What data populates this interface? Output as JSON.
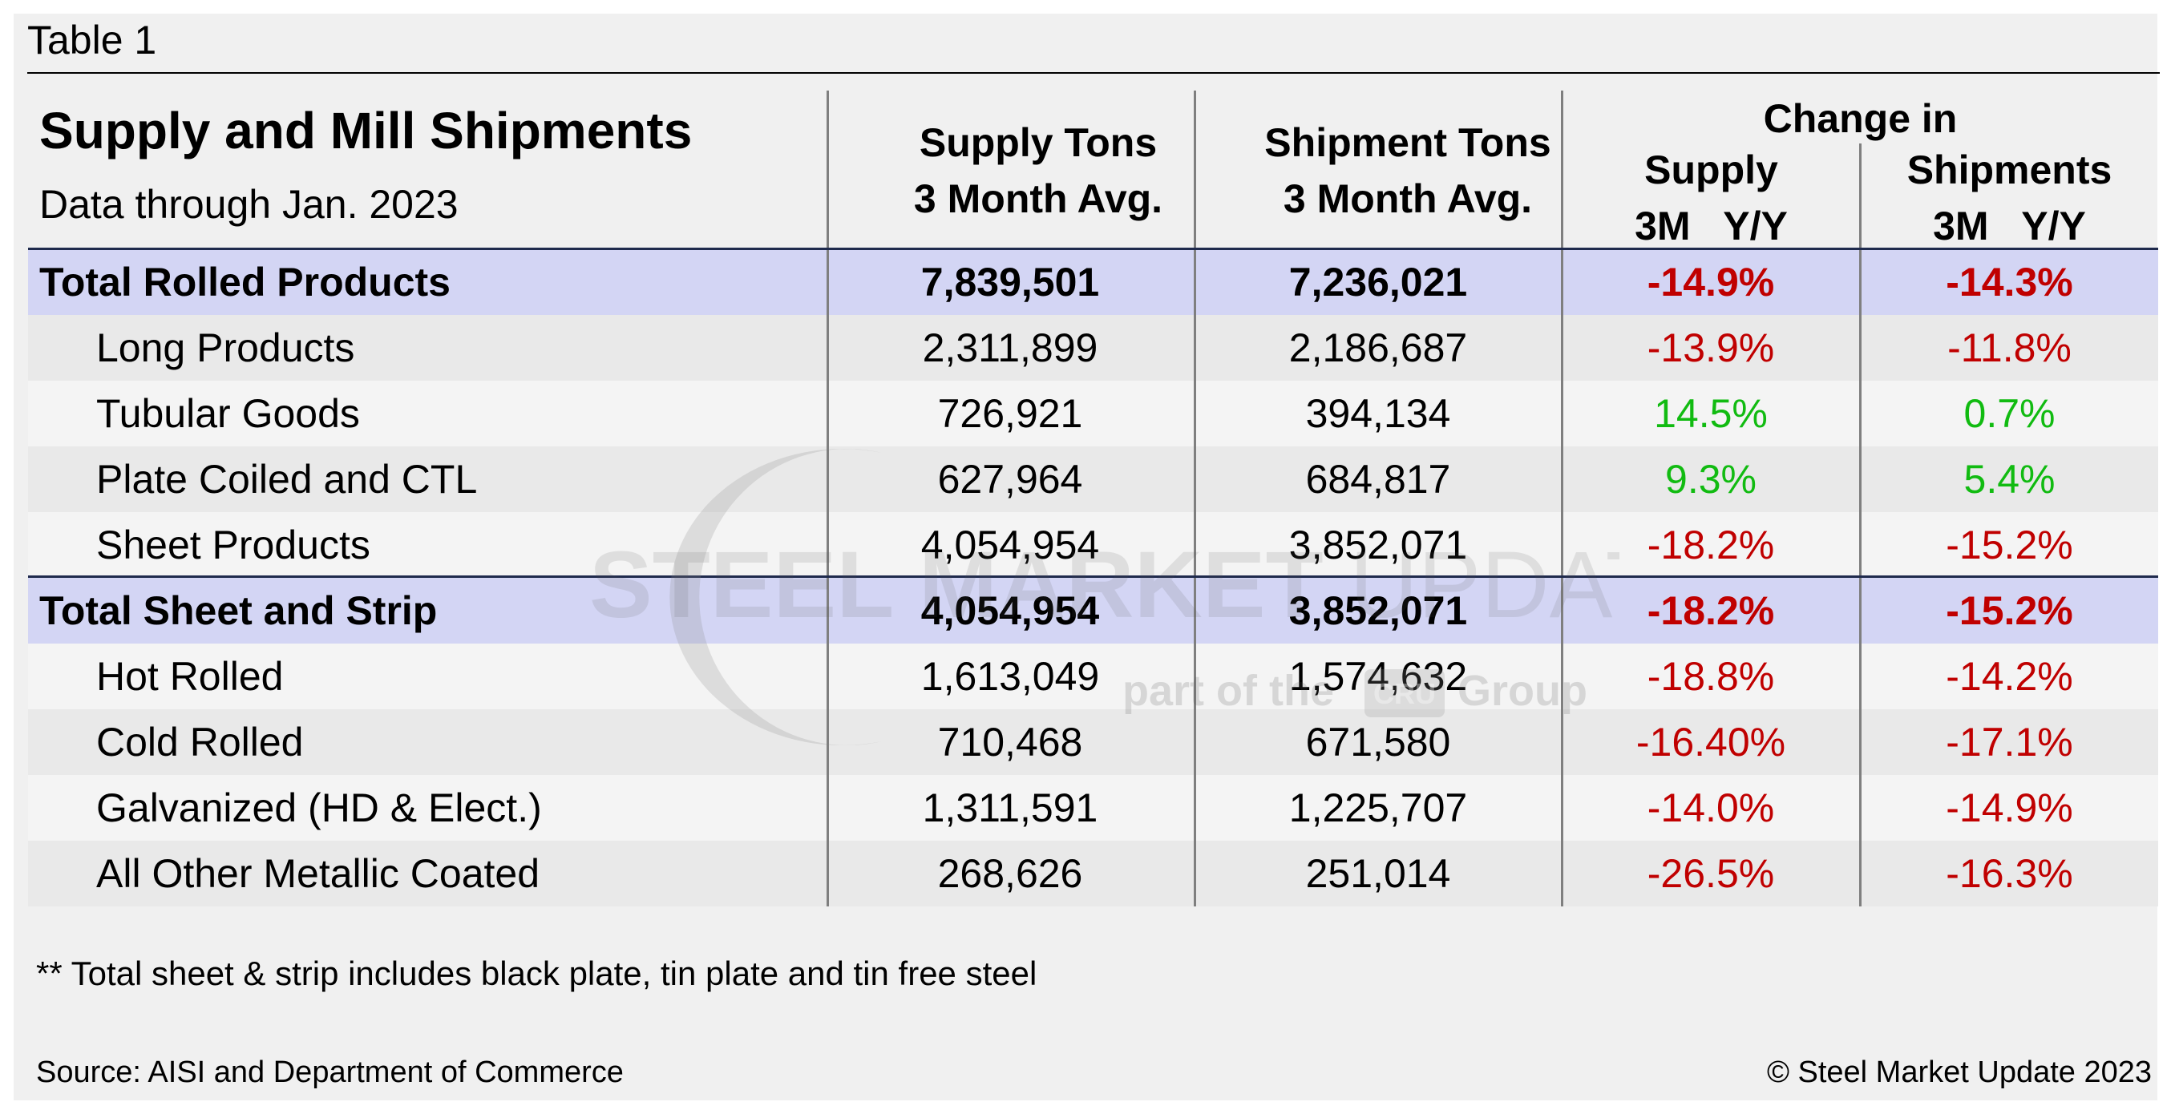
{
  "caption": "Table 1",
  "chart_data": {
    "type": "table",
    "title": "Supply and Mill Shipments",
    "subtitle": "Data through Jan. 2023",
    "columns": {
      "supply_tons": [
        "Supply Tons",
        "3 Month Avg."
      ],
      "shipment_tons": [
        "Shipment Tons",
        "3 Month Avg."
      ],
      "change_in": "Change in",
      "supply_change": [
        "Supply",
        "3M   Y/Y"
      ],
      "shipments_change": [
        "Shipments",
        "3M   Y/Y"
      ]
    },
    "rows": [
      {
        "label": "Total Rolled Products",
        "supply": "7,839,501",
        "shipment": "7,236,021",
        "supply_yy": "-14.9%",
        "ship_yy": "-14.3%"
      },
      {
        "label": "Long Products",
        "supply": "2,311,899",
        "shipment": "2,186,687",
        "supply_yy": "-13.9%",
        "ship_yy": "-11.8%"
      },
      {
        "label": "Tubular Goods",
        "supply": "726,921",
        "shipment": "394,134",
        "supply_yy": "14.5%",
        "ship_yy": "0.7%"
      },
      {
        "label": "Plate Coiled and CTL",
        "supply": "627,964",
        "shipment": "684,817",
        "supply_yy": "9.3%",
        "ship_yy": "5.4%"
      },
      {
        "label": "Sheet Products",
        "supply": "4,054,954",
        "shipment": "3,852,071",
        "supply_yy": "-18.2%",
        "ship_yy": "-15.2%"
      },
      {
        "label": "Total Sheet and Strip",
        "supply": "4,054,954",
        "shipment": "3,852,071",
        "supply_yy": "-18.2%",
        "ship_yy": "-15.2%"
      },
      {
        "label": "Hot Rolled",
        "supply": "1,613,049",
        "shipment": "1,574,632",
        "supply_yy": "-18.8%",
        "ship_yy": "-14.2%"
      },
      {
        "label": "Cold Rolled",
        "supply": "710,468",
        "shipment": "671,580",
        "supply_yy": "-16.40%",
        "ship_yy": "-17.1%"
      },
      {
        "label": "Galvanized (HD & Elect.)",
        "supply": "1,311,591",
        "shipment": "1,225,707",
        "supply_yy": "-14.0%",
        "ship_yy": "-14.9%"
      },
      {
        "label": "All Other Metallic Coated",
        "supply": "268,626",
        "shipment": "251,014",
        "supply_yy": "-26.5%",
        "ship_yy": "-16.3%"
      }
    ]
  },
  "watermark": {
    "brand_bold": "STEEL MARKET",
    "brand_light": " UPDATE",
    "group_prefix": "part of the",
    "group_suffix": "Group",
    "group_mark": "CRU"
  },
  "footnote": "** Total sheet & strip includes black plate, tin plate and tin free steel",
  "source": "Source: AISI and Department of Commerce",
  "copyright": "© Steel Market Update 2023",
  "colors": {
    "panel": "#f0f0f0",
    "total_band": "#d3d5f4",
    "row_alt": "#e9e9e9",
    "row_light": "#f4f4f4",
    "negative": "#c00000",
    "positive": "#11bb11",
    "rule_dark": "#1f2a4d",
    "divider": "#7f7f7f"
  }
}
